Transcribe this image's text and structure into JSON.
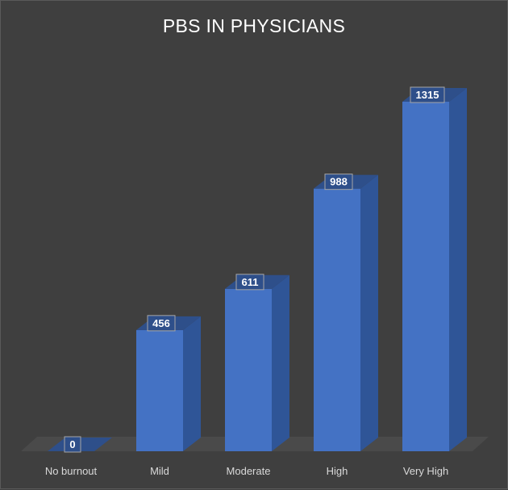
{
  "chart_data": {
    "type": "bar",
    "title": "PBS IN PHYSICIANS",
    "categories": [
      "No burnout",
      "Mild",
      "Moderate",
      "High",
      "Very High"
    ],
    "values": [
      0,
      456,
      611,
      988,
      1315
    ],
    "ylim": [
      0,
      1315
    ],
    "grid": false,
    "legend": "none",
    "colors": {
      "bar_front": "#4472c4",
      "bar_side": "#2f5597",
      "bar_top": "#2e4f8a",
      "floor": "#4a4a4a",
      "background": "#3f3f3f",
      "label_border": "#a6a6a6"
    }
  }
}
